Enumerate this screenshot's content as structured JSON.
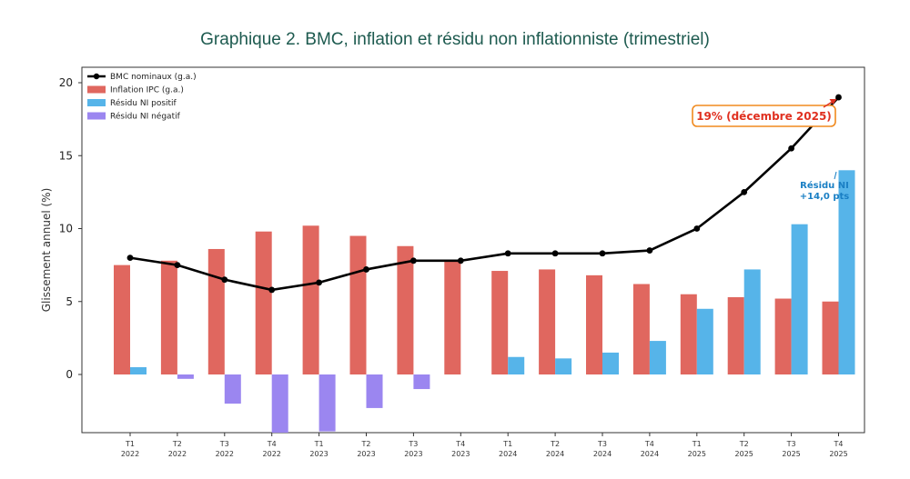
{
  "title": "Graphique 2. BMC, inflation et résidu non inflationniste (trimestriel)",
  "chart_data": {
    "type": "bar",
    "ylabel": "Glissement annuel (%)",
    "ylim": [
      -4,
      20.5
    ],
    "yticks": [
      0,
      5,
      10,
      15,
      20
    ],
    "grid": false,
    "legend_position": "top-left",
    "categories": [
      [
        "T1",
        "2022"
      ],
      [
        "T2",
        "2022"
      ],
      [
        "T3",
        "2022"
      ],
      [
        "T4",
        "2022"
      ],
      [
        "T1",
        "2023"
      ],
      [
        "T2",
        "2023"
      ],
      [
        "T3",
        "2023"
      ],
      [
        "T4",
        "2023"
      ],
      [
        "T1",
        "2024"
      ],
      [
        "T2",
        "2024"
      ],
      [
        "T3",
        "2024"
      ],
      [
        "T4",
        "2024"
      ],
      [
        "T1",
        "2025"
      ],
      [
        "T2",
        "2025"
      ],
      [
        "T3",
        "2025"
      ],
      [
        "T4",
        "2025"
      ]
    ],
    "series": [
      {
        "name": "BMC nominaux (g.a.)",
        "kind": "line",
        "color": "#000000",
        "values": [
          8.0,
          7.5,
          6.5,
          5.8,
          6.3,
          7.2,
          7.8,
          7.8,
          8.3,
          8.3,
          8.3,
          8.5,
          10.0,
          12.5,
          15.5,
          19.0
        ]
      },
      {
        "name": "Inflation IPC (g.a.)",
        "kind": "bar",
        "color": "#e0675f",
        "values": [
          7.5,
          7.8,
          8.6,
          9.8,
          10.2,
          9.5,
          8.8,
          7.8,
          7.1,
          7.2,
          6.8,
          6.2,
          5.5,
          5.3,
          5.2,
          5.0
        ]
      },
      {
        "name": "Résidu NI positif",
        "kind": "bar",
        "color": "#56b4e9",
        "values": [
          0.5,
          0,
          0,
          0,
          0,
          0,
          0,
          0,
          1.2,
          1.1,
          1.5,
          2.3,
          4.5,
          7.2,
          10.3,
          14.0
        ]
      },
      {
        "name": "Résidu NI négatif",
        "kind": "bar",
        "color": "#9b86f0",
        "values": [
          0,
          -0.3,
          -2.0,
          -4.2,
          -3.9,
          -2.3,
          -1.0,
          0,
          0,
          0,
          0,
          0,
          0,
          0,
          0,
          0
        ]
      }
    ],
    "annotations": [
      {
        "text": "19% (décembre 2025)",
        "color": "#e03020",
        "border": "#f08a1e",
        "target_index": 15,
        "target_value": 19.0
      },
      {
        "lines": [
          "Résidu NI",
          "+14,0 pts"
        ],
        "color": "#1a7fc4",
        "target_index": 15,
        "target_value": 14.0
      }
    ]
  }
}
